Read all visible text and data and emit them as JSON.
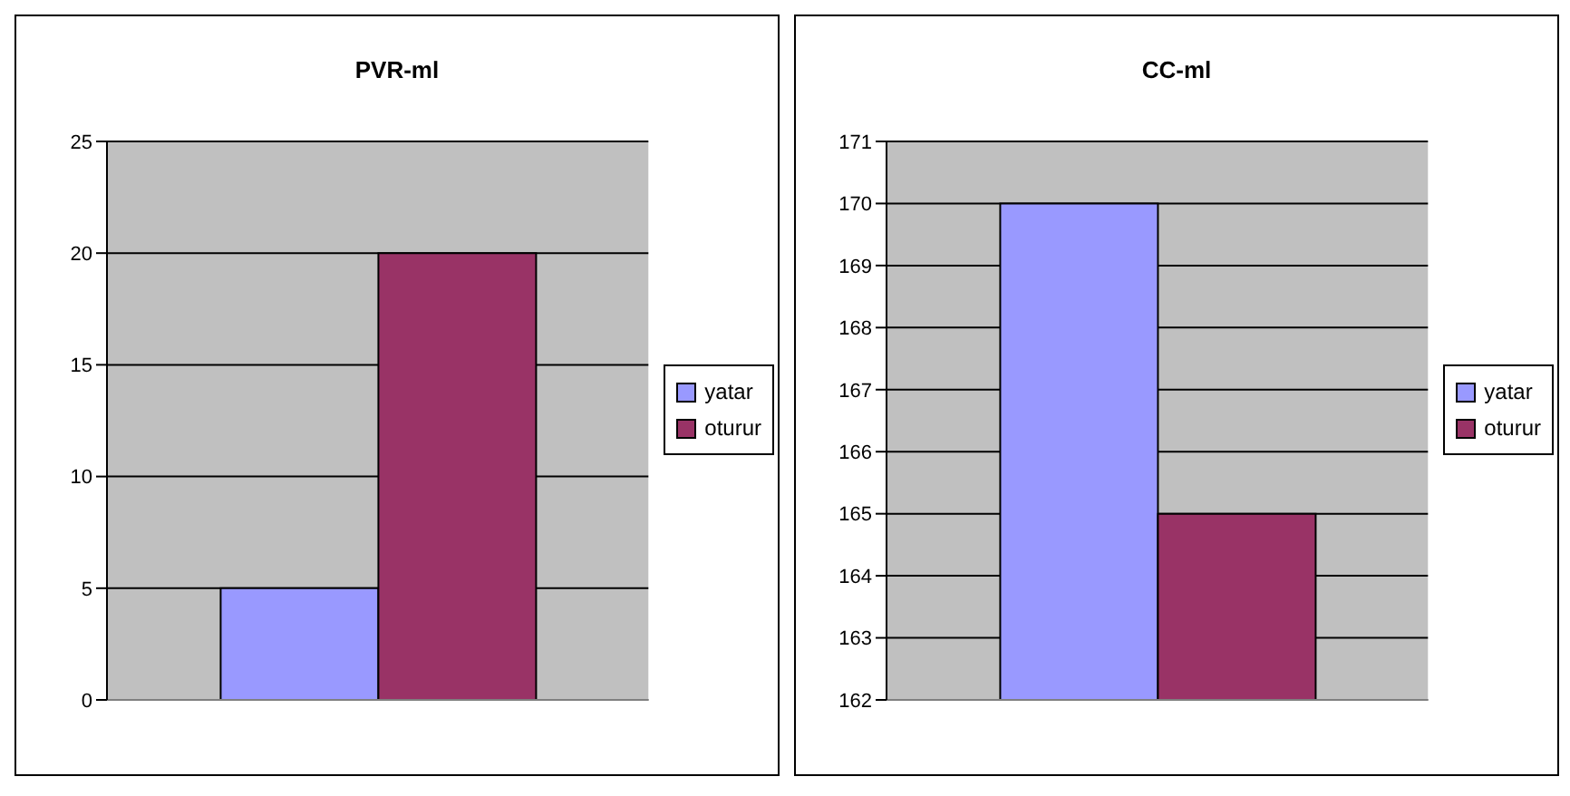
{
  "chart_data": [
    {
      "type": "bar",
      "title": "PVR-ml",
      "categories": [
        null
      ],
      "series": [
        {
          "name": "yatar",
          "color": "#9999ff",
          "values": [
            5
          ]
        },
        {
          "name": "oturur",
          "color": "#993366",
          "values": [
            20
          ]
        }
      ],
      "ylim": [
        0,
        25
      ],
      "yticks": [
        0,
        5,
        10,
        15,
        20,
        25
      ],
      "grid": "y",
      "legend": "right"
    },
    {
      "type": "bar",
      "title": "CC-ml",
      "categories": [
        null
      ],
      "series": [
        {
          "name": "yatar",
          "color": "#9999ff",
          "values": [
            170
          ]
        },
        {
          "name": "oturur",
          "color": "#993366",
          "values": [
            165
          ]
        }
      ],
      "ylim": [
        162,
        171
      ],
      "yticks": [
        162,
        163,
        164,
        165,
        166,
        167,
        168,
        169,
        170,
        171
      ],
      "grid": "y",
      "legend": "right"
    }
  ]
}
